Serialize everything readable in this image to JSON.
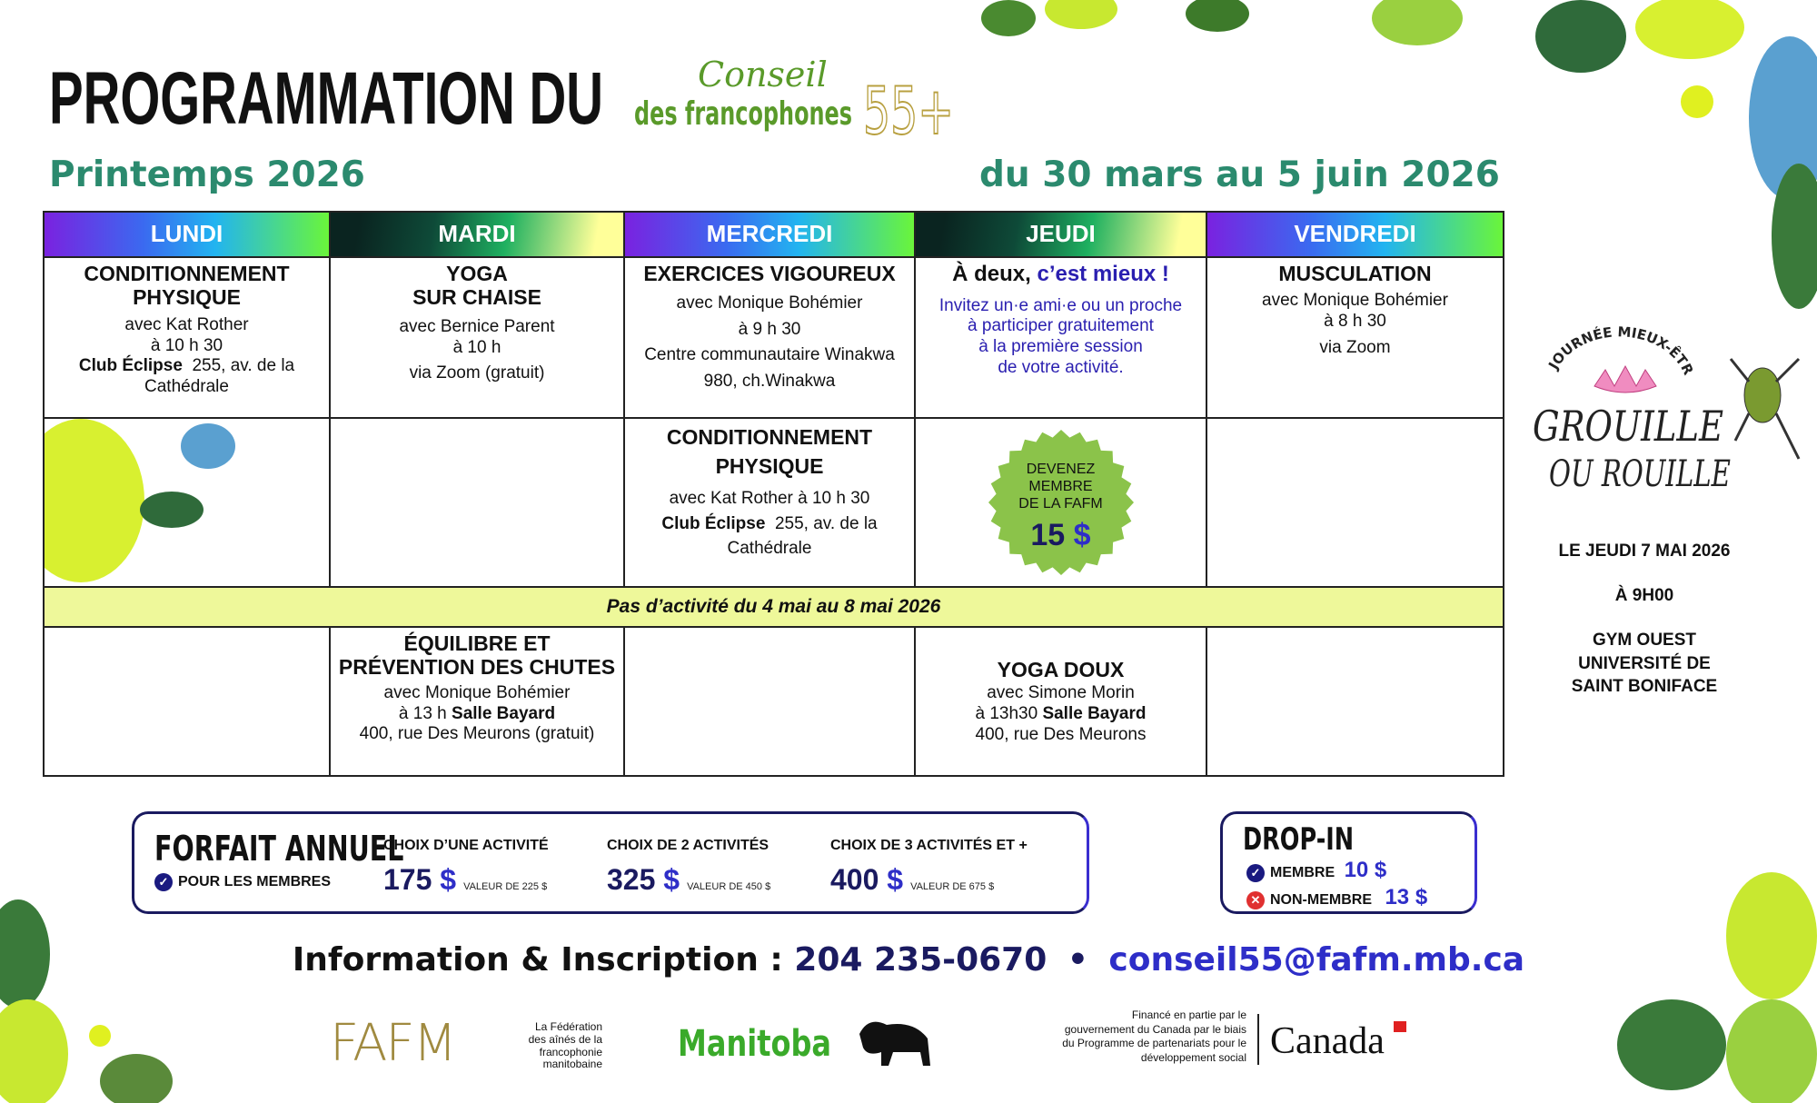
{
  "header": {
    "title": "PROGRAMMATION DU",
    "logo_text": [
      "Conseil",
      "des francophones",
      "55+"
    ],
    "season": "Printemps 2026",
    "dates": "du 30 mars au 5 juin 2026"
  },
  "days": [
    "LUNDI",
    "MARDI",
    "MERCREDI",
    "JEUDI",
    "VENDREDI"
  ],
  "row1": {
    "lundi": {
      "title": "CONDITIONNEMENT PHYSIQUE",
      "with": "avec Kat Rother",
      "time": "à 10 h 30",
      "place": "Club Éclipse",
      "address": "255, av. de la Cathédrale"
    },
    "mardi": {
      "title1": "YOGA",
      "title2": "SUR CHAISE",
      "with": "avec Bernice Parent",
      "time": "à 10 h",
      "place": "via Zoom (gratuit)"
    },
    "mercredi": {
      "title": "EXERCICES VIGOUREUX",
      "with": "avec Monique Bohémier",
      "time": "à 9 h 30",
      "place": "Centre communautaire Winakwa",
      "address": "980, ch.Winakwa"
    },
    "jeudi": {
      "title_a": "À deux,",
      "title_b": "c’est mieux !",
      "l1": "Invitez un·e ami·e ou un proche",
      "l2": "à participer gratuitement",
      "l3": "à la première session",
      "l4": "de votre activité."
    },
    "vendredi": {
      "title": "MUSCULATION",
      "with": "avec Monique Bohémier",
      "time": "à 8 h 30",
      "place": "via Zoom"
    }
  },
  "row2": {
    "mercredi": {
      "title1": "CONDITIONNEMENT",
      "title2": "PHYSIQUE",
      "with": "avec Kat Rother à 10 h 30",
      "place": "Club Éclipse",
      "address": "255, av. de la Cathédrale"
    },
    "jeudi": {
      "l1": "DEVENEZ",
      "l2": "MEMBRE",
      "l3": "DE LA FAFM",
      "price": "15",
      "currency": "$"
    }
  },
  "band": "Pas d’activité du 4 mai au 8 mai 2026",
  "row3": {
    "mardi": {
      "title1": "ÉQUILIBRE ET",
      "title2": "PRÉVENTION DES CHUTES",
      "with": "avec Monique Bohémier",
      "time": "à 13 h",
      "place": "Salle Bayard",
      "address": "400, rue Des Meurons (gratuit)"
    },
    "jeudi": {
      "title": "YOGA DOUX",
      "with": "avec Simone Morin",
      "time": "à 13h30",
      "place": "Salle Bayard",
      "address": "400, rue Des Meurons"
    }
  },
  "event": {
    "logo_arc": "JOURNÉE MIEUX-ÊTRE",
    "logo_l1": "GROUILLE",
    "logo_l2": "OU ROUILLE",
    "date": "LE JEUDI 7 MAI 2026",
    "time": "À 9H00",
    "place1": "GYM OUEST",
    "place2": "UNIVERSITÉ DE",
    "place3": "SAINT BONIFACE"
  },
  "forfait": {
    "title": "FORFAIT ANNUEL",
    "members": "POUR LES MEMBRES",
    "options": [
      {
        "label": "CHOIX D’UNE ACTIVITÉ",
        "price": "175",
        "value": "VALEUR DE 225 $"
      },
      {
        "label": "CHOIX DE 2 ACTIVITÉS",
        "price": "325",
        "value": "VALEUR DE 450 $"
      },
      {
        "label": "CHOIX DE 3 ACTIVITÉS ET +",
        "price": "400",
        "value": "VALEUR DE 675 $"
      }
    ],
    "currency": "$"
  },
  "dropin": {
    "title": "DROP-IN",
    "member_label": "MEMBRE",
    "member_price": "10 $",
    "non_label": "NON-MEMBRE",
    "non_price": "13 $"
  },
  "info": {
    "label": "Information & Inscription :",
    "phone": "204 235-0670",
    "sep": "•",
    "email": "conseil55@fafm.mb.ca"
  },
  "footer": {
    "fafm": "FAFM",
    "fafm_desc": [
      "La Fédération",
      "des aînés de la",
      "francophonie",
      "manitobaine"
    ],
    "manitoba": "Manitoba",
    "canada_note": [
      "Financé en partie par le",
      "gouvernement du Canada par le biais",
      "du Programme de partenariats pour le",
      "développement social"
    ],
    "canada": "Canada"
  },
  "colors": {
    "navy": "#1a1a60",
    "blue": "#2e2ec8",
    "green": "#2b8a6e",
    "band": "#eef89a",
    "badge": "#8bc34a"
  }
}
